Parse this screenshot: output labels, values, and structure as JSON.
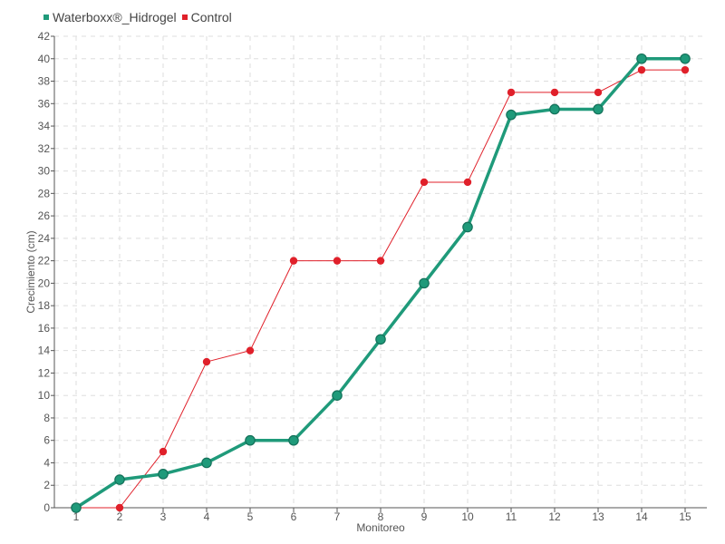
{
  "chart_data": {
    "type": "line",
    "title": "",
    "xlabel": "Monitoreo",
    "ylabel": "Crecimiento (cm)",
    "categories": [
      "1",
      "2",
      "3",
      "4",
      "5",
      "6",
      "7",
      "8",
      "9",
      "10",
      "11",
      "12",
      "13",
      "14",
      "15"
    ],
    "ylim": [
      0,
      42
    ],
    "yticks": [
      0,
      2,
      4,
      6,
      8,
      10,
      12,
      14,
      16,
      18,
      20,
      22,
      24,
      26,
      28,
      30,
      32,
      34,
      36,
      38,
      40,
      42
    ],
    "grid": true,
    "legend_position": "top-left",
    "series": [
      {
        "name": "Waterboxx®_Hidrogel",
        "color": "#1f9a7a",
        "values": [
          0,
          2.5,
          3,
          4,
          6,
          6,
          10,
          15,
          20,
          25,
          35,
          35.5,
          35.5,
          40,
          40
        ]
      },
      {
        "name": "Control",
        "color": "#e0202a",
        "values": [
          0,
          0,
          5,
          13,
          14,
          22,
          22,
          22,
          29,
          29,
          37,
          37,
          37,
          39,
          39
        ]
      }
    ]
  }
}
